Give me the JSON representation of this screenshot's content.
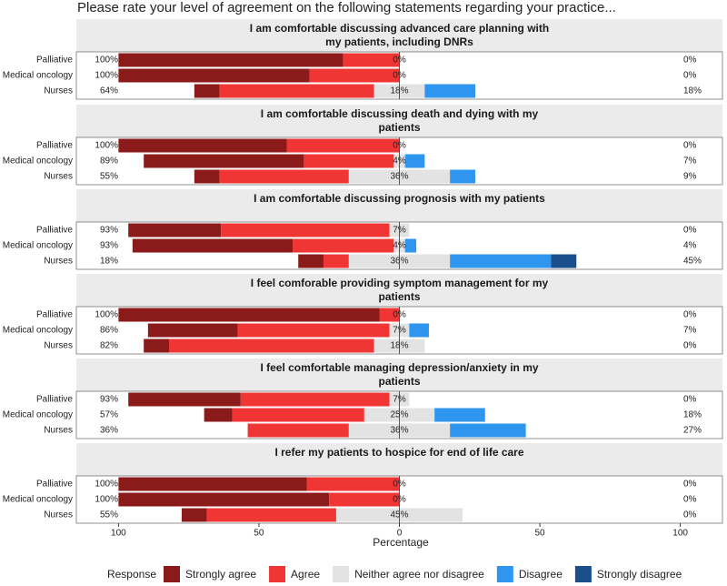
{
  "title": "Please rate your level of agreement on the following statements regarding your practice...",
  "xlabel": "Percentage",
  "legend_title": "Response",
  "xlim": [
    -115,
    115
  ],
  "xticks": [
    {
      "value": -100,
      "label": "100"
    },
    {
      "value": -50,
      "label": "50"
    },
    0,
    50,
    100
  ],
  "chart_data": [
    {
      "type": "likert",
      "title": "I am comfortable discussing advanced care planning with my patients, including DNRs",
      "categories": [
        "Palliative",
        "Medical oncology",
        "Nurses"
      ],
      "series": [
        {
          "name": "Strongly agree",
          "color": "#8b1a1a",
          "values": [
            80,
            68,
            9
          ]
        },
        {
          "name": "Agree",
          "color": "#f03535",
          "values": [
            20,
            32,
            55
          ]
        },
        {
          "name": "Neither agree nor disagree",
          "color": "#e3e3e3",
          "values": [
            0,
            0,
            18
          ],
          "value_labels": [
            "0%",
            "0%",
            "18%"
          ]
        },
        {
          "name": "Disagree",
          "color": "#2e96ee",
          "values": [
            0,
            0,
            18
          ]
        },
        {
          "name": "Strongly disagree",
          "color": "#1b4f8c",
          "values": [
            0,
            0,
            0
          ]
        }
      ],
      "agree_total": {
        "values": [
          100,
          100,
          64
        ],
        "value_labels": [
          "100%",
          "100%",
          "64%"
        ]
      },
      "disagree_total": {
        "values": [
          0,
          0,
          18
        ],
        "value_labels": [
          "0%",
          "0%",
          "18%"
        ]
      }
    },
    {
      "type": "likert",
      "title": "I am comfortable discussing death and dying with my patients",
      "categories": [
        "Palliative",
        "Medical oncology",
        "Nurses"
      ],
      "series": [
        {
          "name": "Strongly agree",
          "color": "#8b1a1a",
          "values": [
            60,
            57,
            9
          ]
        },
        {
          "name": "Agree",
          "color": "#f03535",
          "values": [
            40,
            32,
            46
          ]
        },
        {
          "name": "Neither agree nor disagree",
          "color": "#e3e3e3",
          "values": [
            0,
            4,
            36
          ],
          "value_labels": [
            "0%",
            "4%",
            "36%"
          ]
        },
        {
          "name": "Disagree",
          "color": "#2e96ee",
          "values": [
            0,
            7,
            9
          ]
        },
        {
          "name": "Strongly disagree",
          "color": "#1b4f8c",
          "values": [
            0,
            0,
            0
          ]
        }
      ],
      "agree_total": {
        "values": [
          100,
          89,
          55
        ],
        "value_labels": [
          "100%",
          "89%",
          "55%"
        ]
      },
      "disagree_total": {
        "values": [
          0,
          7,
          9
        ],
        "value_labels": [
          "0%",
          "7%",
          "9%"
        ]
      }
    },
    {
      "type": "likert",
      "title": "I am comfortable discussing prognosis with my patients",
      "categories": [
        "Palliative",
        "Medical oncology",
        "Nurses"
      ],
      "series": [
        {
          "name": "Strongly agree",
          "color": "#8b1a1a",
          "values": [
            33,
            57,
            9
          ]
        },
        {
          "name": "Agree",
          "color": "#f03535",
          "values": [
            60,
            36,
            9
          ]
        },
        {
          "name": "Neither agree nor disagree",
          "color": "#e3e3e3",
          "values": [
            7,
            4,
            36
          ],
          "value_labels": [
            "7%",
            "4%",
            "36%"
          ]
        },
        {
          "name": "Disagree",
          "color": "#2e96ee",
          "values": [
            0,
            4,
            36
          ]
        },
        {
          "name": "Strongly disagree",
          "color": "#1b4f8c",
          "values": [
            0,
            0,
            9
          ]
        }
      ],
      "agree_total": {
        "values": [
          93,
          93,
          18
        ],
        "value_labels": [
          "93%",
          "93%",
          "18%"
        ]
      },
      "disagree_total": {
        "values": [
          0,
          4,
          45
        ],
        "value_labels": [
          "0%",
          "4%",
          "45%"
        ]
      }
    },
    {
      "type": "likert",
      "title": "I feel comforable providing symptom management for my patients",
      "categories": [
        "Palliative",
        "Medical oncology",
        "Nurses"
      ],
      "series": [
        {
          "name": "Strongly agree",
          "color": "#8b1a1a",
          "values": [
            93,
            32,
            9
          ]
        },
        {
          "name": "Agree",
          "color": "#f03535",
          "values": [
            7,
            54,
            73
          ]
        },
        {
          "name": "Neither agree nor disagree",
          "color": "#e3e3e3",
          "values": [
            0,
            7,
            18
          ],
          "value_labels": [
            "0%",
            "7%",
            "18%"
          ]
        },
        {
          "name": "Disagree",
          "color": "#2e96ee",
          "values": [
            0,
            7,
            0
          ]
        },
        {
          "name": "Strongly disagree",
          "color": "#1b4f8c",
          "values": [
            0,
            0,
            0
          ]
        }
      ],
      "agree_total": {
        "values": [
          100,
          86,
          82
        ],
        "value_labels": [
          "100%",
          "86%",
          "82%"
        ]
      },
      "disagree_total": {
        "values": [
          0,
          7,
          0
        ],
        "value_labels": [
          "0%",
          "7%",
          "0%"
        ]
      }
    },
    {
      "type": "likert",
      "title": "I feel comfortable managing depression/anxiety in my patients",
      "categories": [
        "Palliative",
        "Medical oncology",
        "Nurses"
      ],
      "series": [
        {
          "name": "Strongly agree",
          "color": "#8b1a1a",
          "values": [
            40,
            10,
            0
          ]
        },
        {
          "name": "Agree",
          "color": "#f03535",
          "values": [
            53,
            47,
            36
          ]
        },
        {
          "name": "Neither agree nor disagree",
          "color": "#e3e3e3",
          "values": [
            7,
            25,
            36
          ],
          "value_labels": [
            "7%",
            "25%",
            "36%"
          ]
        },
        {
          "name": "Disagree",
          "color": "#2e96ee",
          "values": [
            0,
            18,
            27
          ]
        },
        {
          "name": "Strongly disagree",
          "color": "#1b4f8c",
          "values": [
            0,
            0,
            0
          ]
        }
      ],
      "agree_total": {
        "values": [
          93,
          57,
          36
        ],
        "value_labels": [
          "93%",
          "57%",
          "36%"
        ]
      },
      "disagree_total": {
        "values": [
          0,
          18,
          27
        ],
        "value_labels": [
          "0%",
          "18%",
          "27%"
        ]
      }
    },
    {
      "type": "likert",
      "title": "I refer my patients to hospice for end of life care",
      "categories": [
        "Palliative",
        "Medical oncology",
        "Nurses"
      ],
      "series": [
        {
          "name": "Strongly agree",
          "color": "#8b1a1a",
          "values": [
            67,
            75,
            9
          ]
        },
        {
          "name": "Agree",
          "color": "#f03535",
          "values": [
            33,
            25,
            46
          ]
        },
        {
          "name": "Neither agree nor disagree",
          "color": "#e3e3e3",
          "values": [
            0,
            0,
            45
          ],
          "value_labels": [
            "0%",
            "0%",
            "45%"
          ]
        },
        {
          "name": "Disagree",
          "color": "#2e96ee",
          "values": [
            0,
            0,
            0
          ]
        },
        {
          "name": "Strongly disagree",
          "color": "#1b4f8c",
          "values": [
            0,
            0,
            0
          ]
        }
      ],
      "agree_total": {
        "values": [
          100,
          100,
          55
        ],
        "value_labels": [
          "100%",
          "100%",
          "55%"
        ]
      },
      "disagree_total": {
        "values": [
          0,
          0,
          0
        ],
        "value_labels": [
          "0%",
          "0%",
          "0%"
        ]
      }
    }
  ]
}
